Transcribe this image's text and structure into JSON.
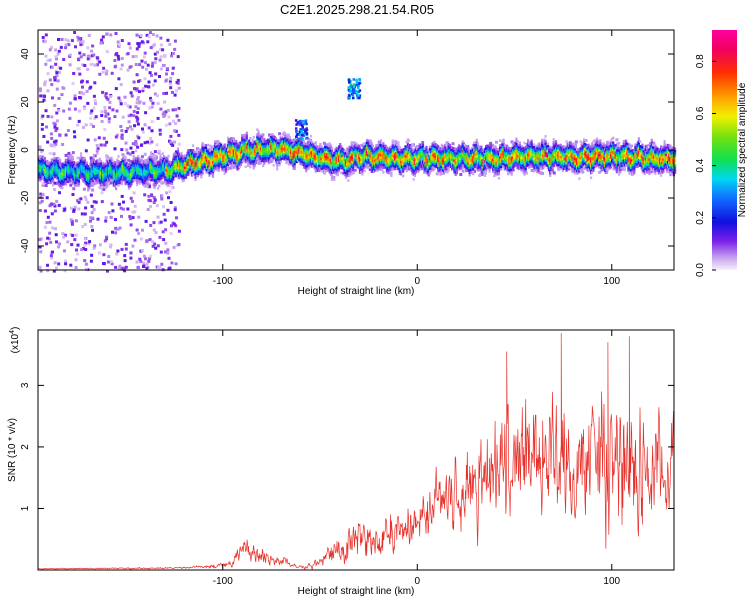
{
  "title": "C2E1.2025.298.21.54.R05",
  "chart_data": [
    {
      "type": "heatmap",
      "xlabel": "Height of straight line (km)",
      "ylabel": "Frequency (Hz)",
      "xlim": [
        -195,
        132
      ],
      "ylim": [
        -50,
        50
      ],
      "xticks": [
        -100,
        0,
        100
      ],
      "yticks": [
        -40,
        -20,
        0,
        20,
        40
      ],
      "colorbar": {
        "label": "Normalized spectral amplitude",
        "range": [
          0,
          0.92
        ],
        "ticks": [
          "0.0",
          "0.2",
          "0.4",
          "0.6",
          "0.8"
        ],
        "tick_values": [
          0.0,
          0.2,
          0.4,
          0.6,
          0.8
        ]
      },
      "ridge": {
        "description_points_x": [
          -195,
          -160,
          -130,
          -110,
          -90,
          -70,
          -55,
          -40,
          -25,
          -10,
          0,
          20,
          40,
          60,
          80,
          100,
          120,
          132
        ],
        "description_points_freq": [
          -8,
          -9,
          -8,
          -4,
          0,
          1,
          -2,
          -4,
          -2,
          -3,
          -3,
          -3,
          -3,
          -2,
          -3,
          -2,
          -3,
          -3
        ],
        "peak_amplitude": 0.9
      },
      "features": [
        {
          "kind": "blob",
          "x": -33,
          "freq": 26,
          "amplitude": 0.4
        },
        {
          "kind": "blob",
          "x": -60,
          "freq": 9,
          "amplitude": 0.35
        }
      ]
    },
    {
      "type": "line",
      "xlabel": "Height of straight line (km)",
      "ylabel": "SNR (10 * v/v)",
      "y_multiplier": "(x10",
      "y_multiplier_exp": "4",
      "xlim": [
        -195,
        132
      ],
      "ylim": [
        0,
        3.9
      ],
      "xticks": [
        -100,
        0,
        100
      ],
      "yticks": [
        1,
        2,
        3
      ],
      "color": "#e8302a",
      "envelope_x": [
        -195,
        -130,
        -110,
        -95,
        -90,
        -85,
        -75,
        -60,
        -50,
        -40,
        -30,
        -20,
        -10,
        0,
        10,
        20,
        30,
        40,
        50,
        60,
        70,
        80,
        90,
        100,
        110,
        120,
        132
      ],
      "envelope_mean": [
        0.02,
        0.03,
        0.05,
        0.1,
        0.35,
        0.3,
        0.2,
        0.05,
        0.1,
        0.3,
        0.5,
        0.5,
        0.6,
        0.8,
        1.1,
        1.3,
        1.5,
        1.7,
        1.8,
        1.85,
        1.8,
        1.75,
        1.7,
        1.7,
        1.6,
        1.6,
        1.7
      ],
      "envelope_amp": [
        0.01,
        0.02,
        0.03,
        0.1,
        0.35,
        0.3,
        0.2,
        0.05,
        0.15,
        0.4,
        0.5,
        0.5,
        0.6,
        0.6,
        0.8,
        1.0,
        1.2,
        1.4,
        1.5,
        1.6,
        1.7,
        1.6,
        1.6,
        1.7,
        1.6,
        1.5,
        1.4
      ],
      "peaks": [
        {
          "x": 74,
          "y": 3.85
        },
        {
          "x": 98,
          "y": 3.7
        },
        {
          "x": 109,
          "y": 3.8
        },
        {
          "x": 46,
          "y": 3.55
        }
      ]
    }
  ]
}
